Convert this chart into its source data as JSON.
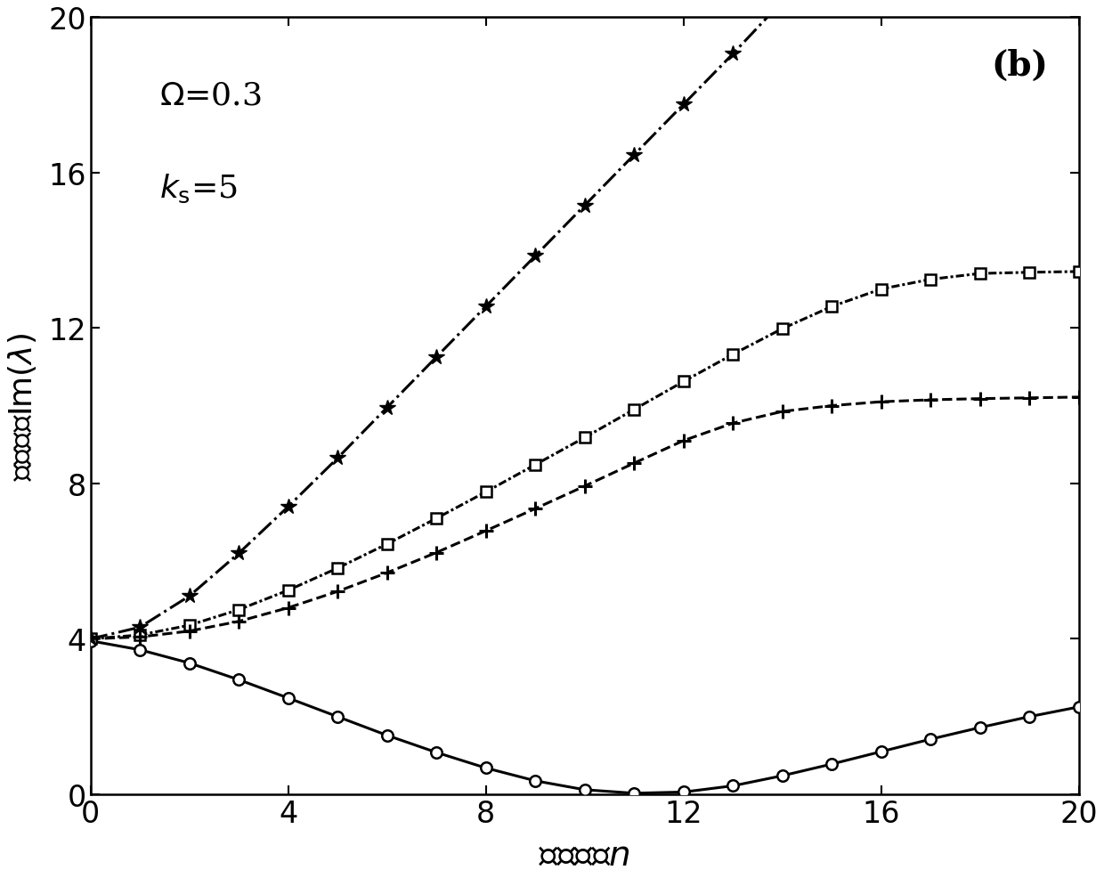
{
  "title_annotation": "(b)",
  "xlim": [
    0,
    20
  ],
  "ylim": [
    0,
    20
  ],
  "xticks": [
    0,
    4,
    8,
    12,
    16,
    20
  ],
  "yticks": [
    0,
    4,
    8,
    12,
    16,
    20
  ],
  "n_values": [
    0,
    1,
    2,
    3,
    4,
    5,
    6,
    7,
    8,
    9,
    10,
    11,
    12,
    13,
    14,
    15,
    16,
    17,
    18,
    19,
    20
  ],
  "curve_star": [
    4.0,
    4.3,
    5.1,
    6.2,
    7.4,
    8.65,
    9.95,
    11.25,
    12.55,
    13.85,
    15.15,
    16.45,
    17.75,
    19.05,
    20.4,
    21.7,
    23.0,
    24.3,
    25.6,
    26.9,
    28.2
  ],
  "curve_square": [
    4.0,
    4.1,
    4.35,
    4.75,
    5.25,
    5.82,
    6.44,
    7.1,
    7.78,
    8.48,
    9.18,
    9.9,
    10.62,
    11.32,
    11.98,
    12.55,
    13.0,
    13.25,
    13.4,
    13.43,
    13.45
  ],
  "curve_plus": [
    4.0,
    4.05,
    4.2,
    4.45,
    4.8,
    5.22,
    5.7,
    6.22,
    6.78,
    7.35,
    7.93,
    8.52,
    9.1,
    9.55,
    9.85,
    10.0,
    10.1,
    10.15,
    10.18,
    10.2,
    10.22
  ],
  "curve_circle": [
    3.95,
    3.72,
    3.38,
    2.95,
    2.48,
    2.0,
    1.52,
    1.08,
    0.68,
    0.35,
    0.12,
    0.03,
    0.06,
    0.22,
    0.48,
    0.78,
    1.1,
    1.42,
    1.72,
    2.0,
    2.25
  ],
  "background_color": "#ffffff",
  "line_color": "#000000",
  "figsize": [
    12.4,
    9.87
  ],
  "dpi": 100
}
